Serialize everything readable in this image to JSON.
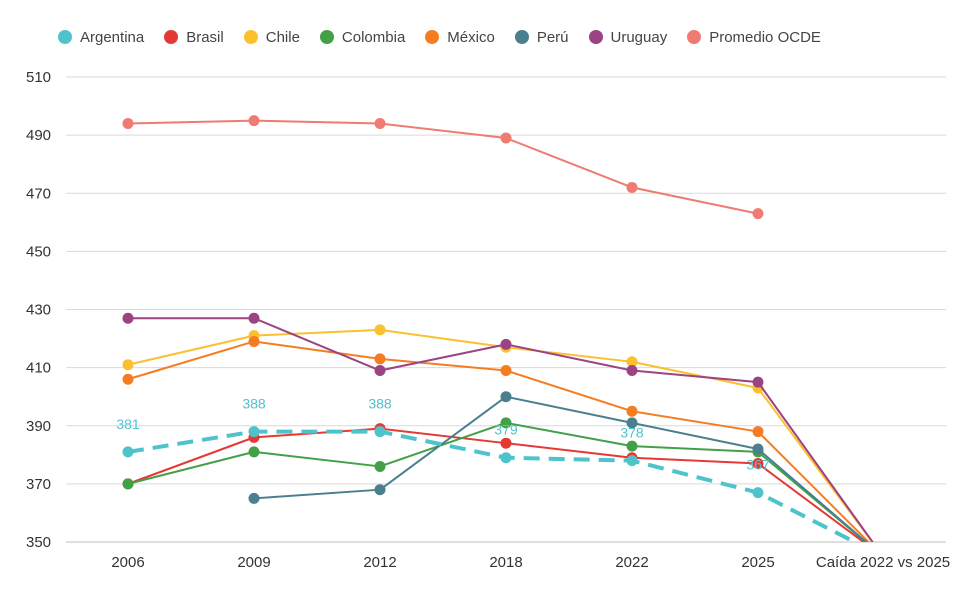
{
  "chart_data": {
    "type": "line",
    "x": [
      "2006",
      "2009",
      "2012",
      "2018",
      "2022",
      "2025",
      "Caída 2022 vs 2025"
    ],
    "ylim": [
      350,
      510
    ],
    "yticks": [
      350,
      370,
      390,
      410,
      430,
      450,
      470,
      490,
      510
    ],
    "grid": true,
    "legend_position": "top",
    "series": [
      {
        "name": "Argentina",
        "color": "#4fc3cc",
        "dashed": true,
        "labeled": true,
        "values": [
          381,
          388,
          388,
          379,
          378,
          367,
          345
        ]
      },
      {
        "name": "Brasil",
        "color": "#e53935",
        "values": [
          370,
          386,
          389,
          384,
          379,
          377,
          345
        ]
      },
      {
        "name": "Chile",
        "color": "#fbc02d",
        "values": [
          411,
          421,
          423,
          417,
          412,
          403,
          345
        ]
      },
      {
        "name": "Colombia",
        "color": "#43a047",
        "values": [
          370,
          381,
          376,
          391,
          383,
          381,
          345
        ]
      },
      {
        "name": "México",
        "color": "#f57c20",
        "values": [
          406,
          419,
          413,
          409,
          395,
          388,
          345
        ]
      },
      {
        "name": "Perú",
        "color": "#4a7f8f",
        "values": [
          null,
          365,
          368,
          400,
          391,
          382,
          345
        ]
      },
      {
        "name": "Uruguay",
        "color": "#9c4383",
        "values": [
          427,
          427,
          409,
          418,
          409,
          405,
          345
        ]
      },
      {
        "name": "Promedio OCDE",
        "color": "#ef7b73",
        "values": [
          494,
          495,
          494,
          489,
          472,
          463,
          null
        ]
      }
    ]
  }
}
